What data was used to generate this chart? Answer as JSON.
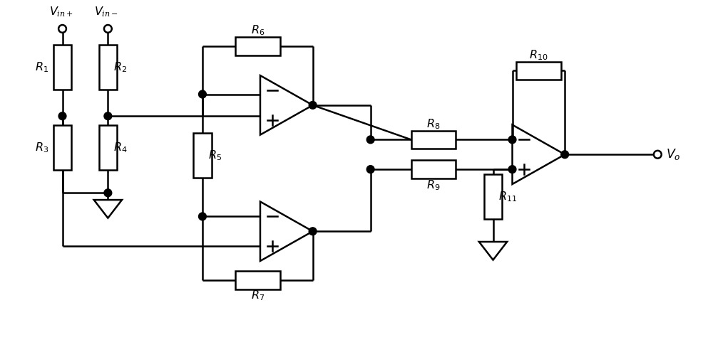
{
  "background_color": "#ffffff",
  "line_color": "#000000",
  "line_width": 1.8,
  "fig_width": 10.0,
  "fig_height": 4.95
}
